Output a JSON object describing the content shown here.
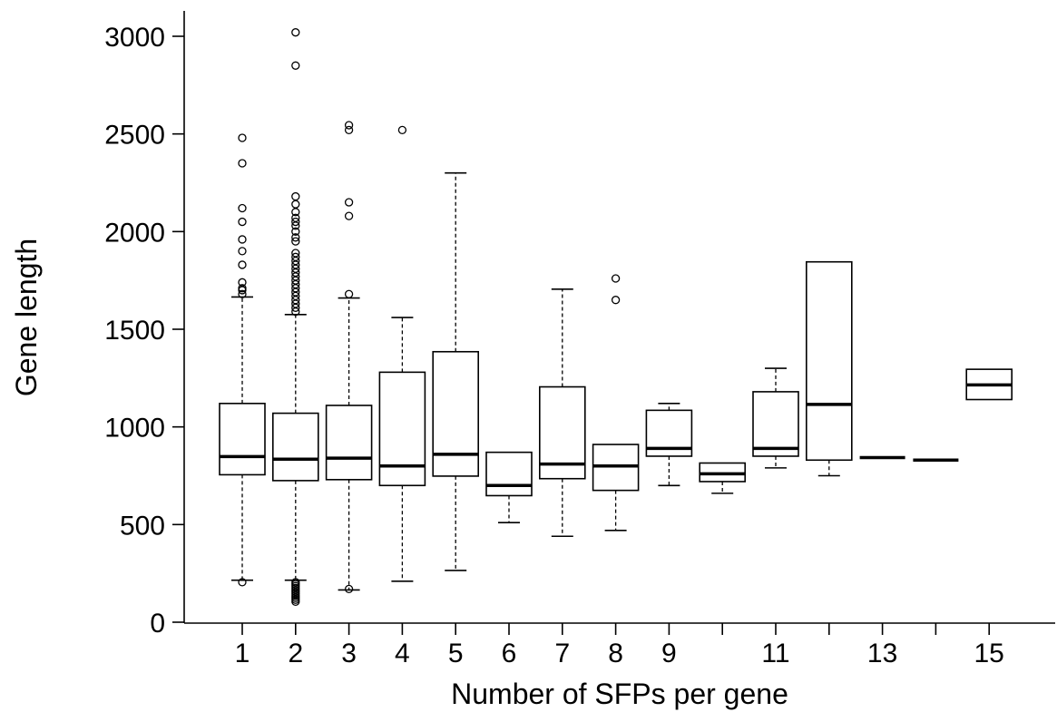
{
  "chart_data": {
    "type": "boxplot",
    "xlabel": "Number of SFPs per gene",
    "ylabel": "Gene length",
    "ylim": [
      0,
      3000
    ],
    "y_ticks": [
      0,
      500,
      1000,
      1500,
      2000,
      2500,
      3000
    ],
    "x_tick_labels": [
      "1",
      "2",
      "3",
      "4",
      "5",
      "6",
      "7",
      "8",
      "9",
      "11",
      "13",
      "15"
    ],
    "groups": [
      {
        "x": 1,
        "min": 215,
        "q1": 755,
        "median": 848,
        "q3": 1120,
        "max": 1665,
        "outliers": [
          205,
          1680,
          1700,
          1710,
          1740,
          1830,
          1900,
          1960,
          2050,
          2120,
          2350,
          2480
        ]
      },
      {
        "x": 2,
        "min": 215,
        "q1": 725,
        "median": 835,
        "q3": 1070,
        "max": 1575,
        "outliers": [
          105,
          115,
          125,
          135,
          145,
          155,
          165,
          175,
          185,
          195,
          205,
          1590,
          1610,
          1630,
          1650,
          1670,
          1690,
          1710,
          1730,
          1750,
          1770,
          1790,
          1810,
          1830,
          1850,
          1870,
          1890,
          1950,
          1970,
          2000,
          2030,
          2050,
          2070,
          2100,
          2140,
          2180,
          2850,
          3020
        ]
      },
      {
        "x": 3,
        "min": 165,
        "q1": 730,
        "median": 840,
        "q3": 1110,
        "max": 1660,
        "outliers": [
          170,
          1680,
          2080,
          2150,
          2520,
          2545
        ]
      },
      {
        "x": 4,
        "min": 210,
        "q1": 700,
        "median": 800,
        "q3": 1280,
        "max": 1560,
        "outliers": [
          2520
        ]
      },
      {
        "x": 5,
        "min": 265,
        "q1": 748,
        "median": 860,
        "q3": 1385,
        "max": 2300,
        "outliers": []
      },
      {
        "x": 6,
        "min": 510,
        "q1": 648,
        "median": 700,
        "q3": 870,
        "max": 870,
        "outliers": []
      },
      {
        "x": 7,
        "min": 440,
        "q1": 735,
        "median": 810,
        "q3": 1205,
        "max": 1705,
        "outliers": []
      },
      {
        "x": 8,
        "min": 470,
        "q1": 675,
        "median": 800,
        "q3": 910,
        "max": 910,
        "outliers": [
          1650,
          1760
        ]
      },
      {
        "x": 9,
        "min": 700,
        "q1": 850,
        "median": 890,
        "q3": 1085,
        "max": 1120,
        "outliers": []
      },
      {
        "x": 10,
        "min": 660,
        "q1": 720,
        "median": 760,
        "q3": 815,
        "max": 815,
        "outliers": []
      },
      {
        "x": 11,
        "min": 790,
        "q1": 850,
        "median": 890,
        "q3": 1180,
        "max": 1300,
        "outliers": []
      },
      {
        "x": 12,
        "min": 750,
        "q1": 830,
        "median": 1115,
        "q3": 1845,
        "max": 1845,
        "outliers": []
      },
      {
        "x": 13,
        "min": 843,
        "q1": 843,
        "median": 843,
        "q3": 843,
        "max": 843,
        "outliers": []
      },
      {
        "x": 14,
        "min": 830,
        "q1": 830,
        "median": 830,
        "q3": 830,
        "max": 830,
        "outliers": []
      },
      {
        "x": 15,
        "min": 1140,
        "q1": 1140,
        "median": 1215,
        "q3": 1295,
        "max": 1295,
        "outliers": []
      }
    ]
  }
}
